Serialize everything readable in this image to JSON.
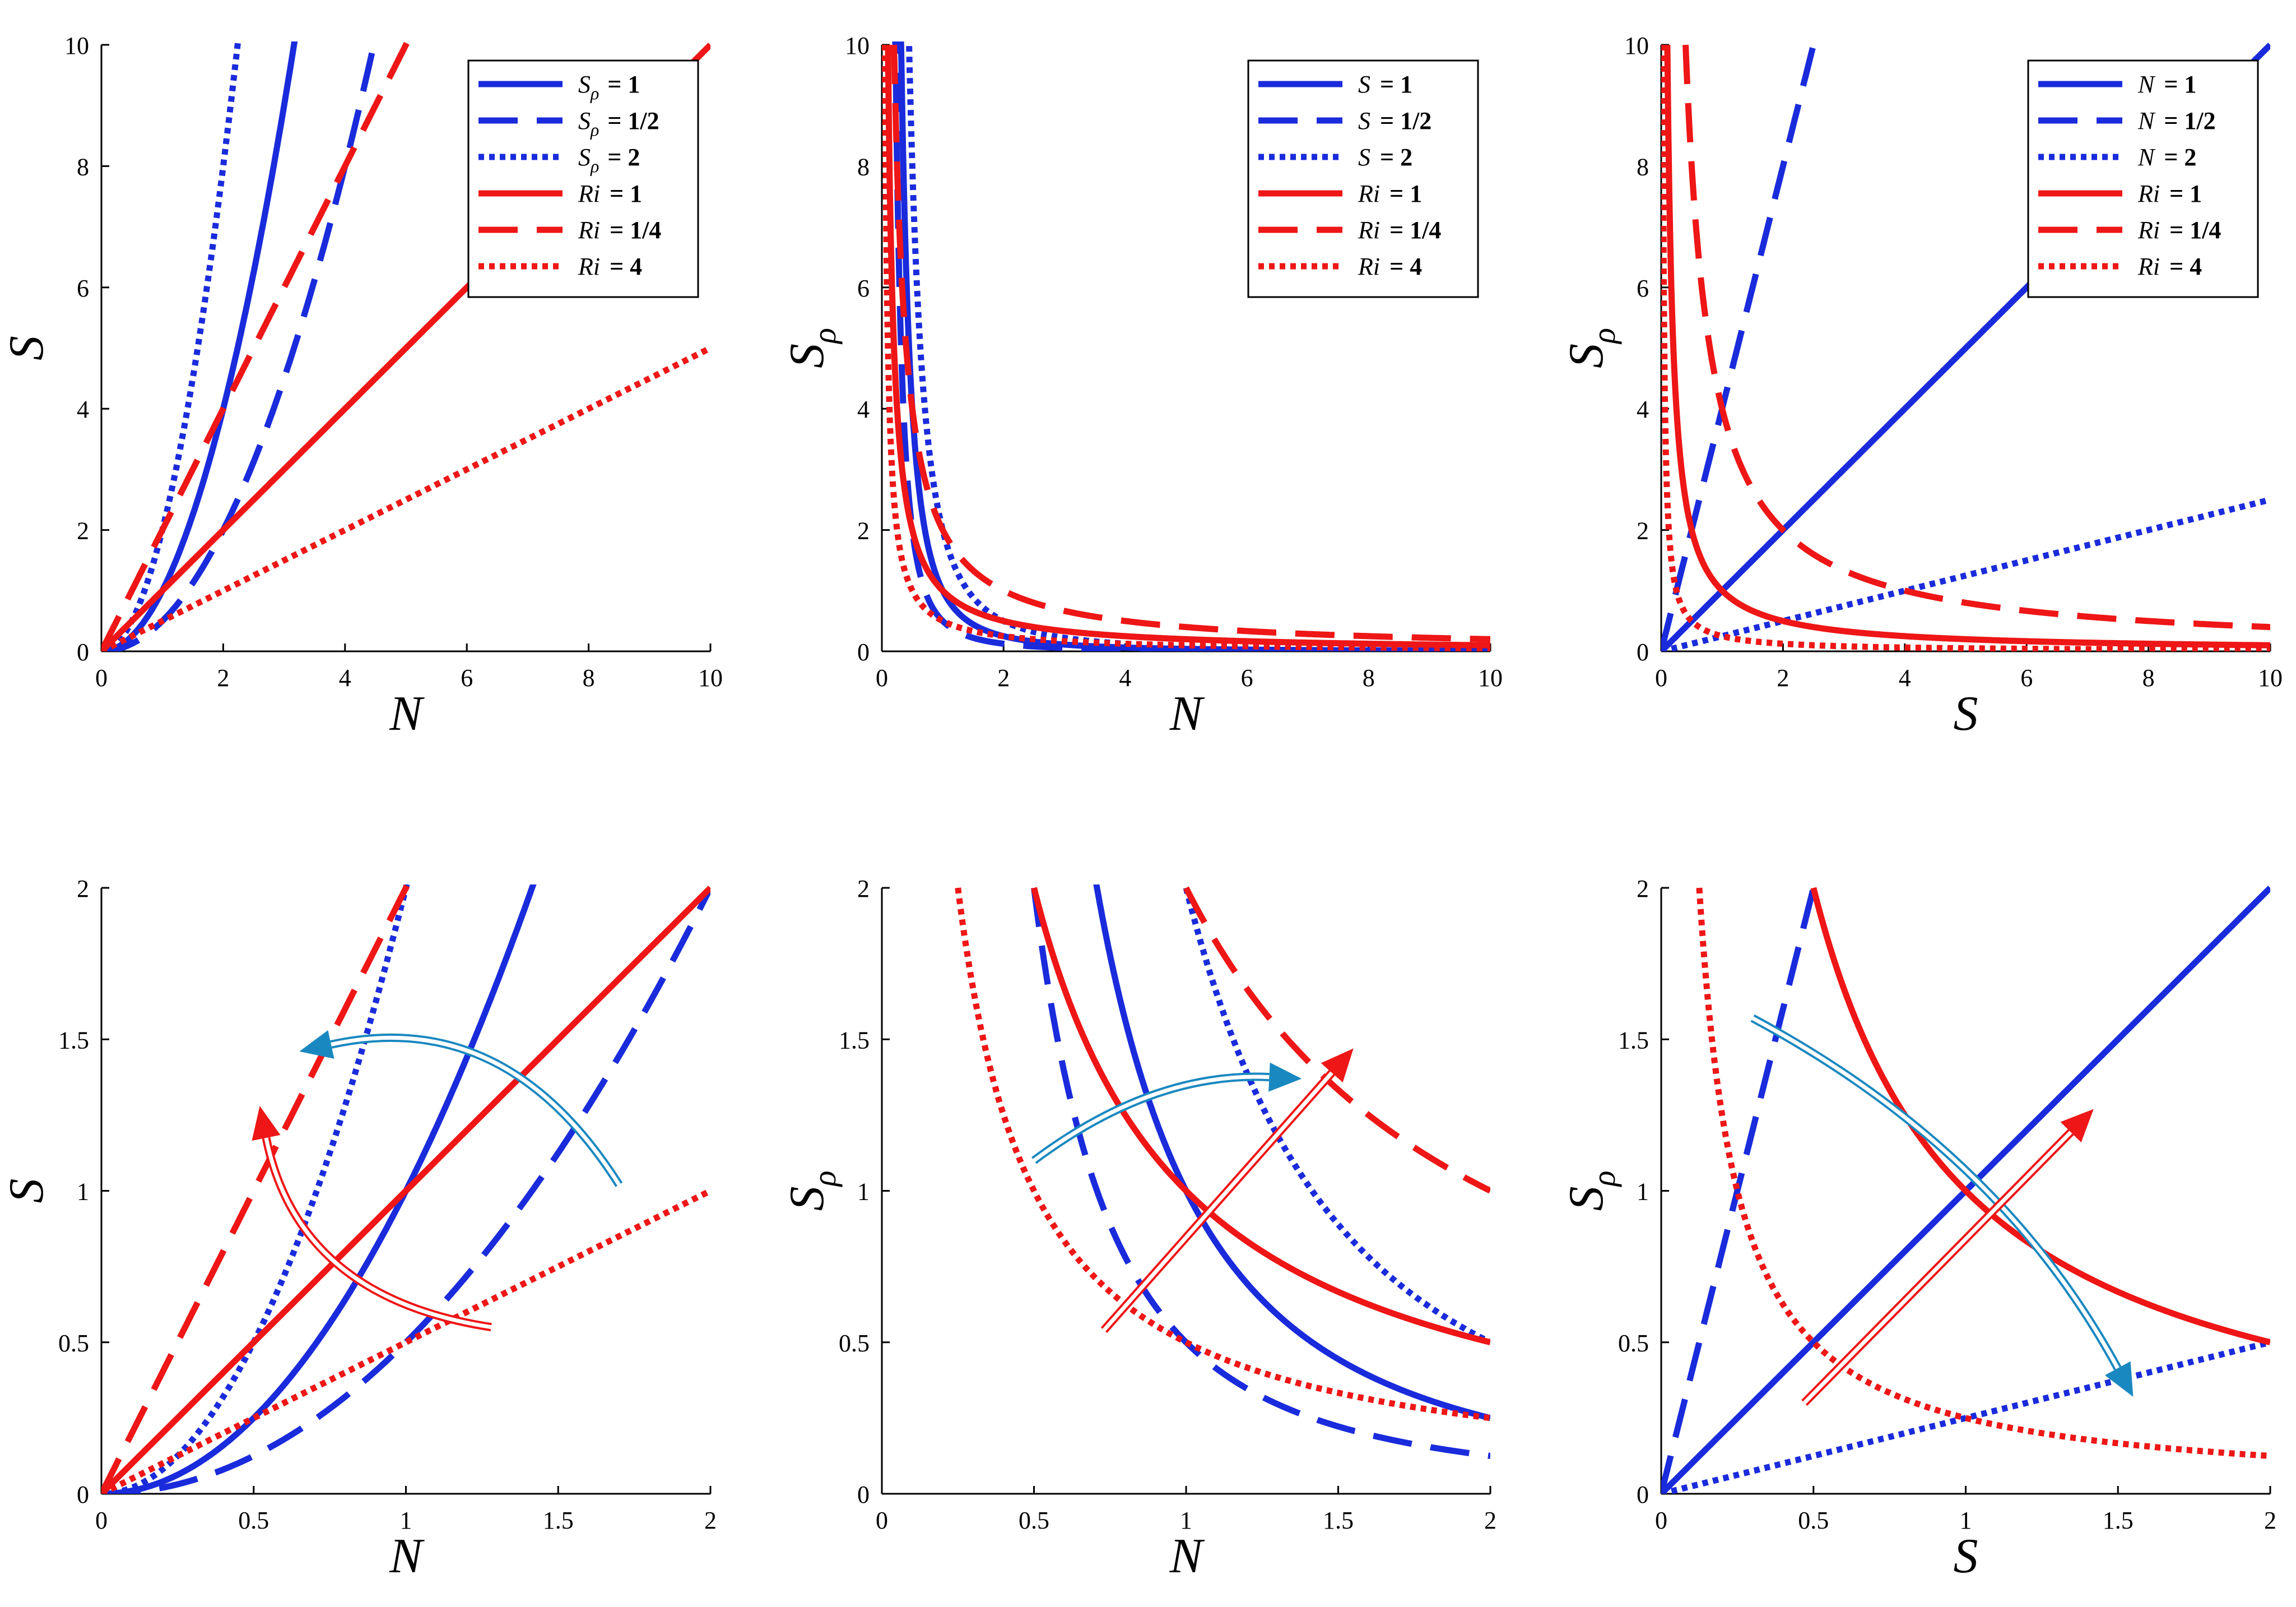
{
  "figure": {
    "colors": {
      "blue": "#1a2bdc",
      "red": "#ee1616",
      "teal": "#1a88c0"
    },
    "description_panels": 6
  },
  "chart_data": [
    {
      "id": "p1",
      "type": "line",
      "xlabel": "N",
      "ylabel": "S",
      "ylabel_sub": "",
      "xlim": [
        0,
        10
      ],
      "ylim": [
        0,
        10
      ],
      "xticks": [
        "0",
        "2",
        "4",
        "6",
        "8",
        "10"
      ],
      "yticks": [
        "0",
        "2",
        "4",
        "6",
        "8",
        "10"
      ],
      "legend": {
        "position": "top-right",
        "entries": [
          {
            "var": "S",
            "sub": "ρ",
            "eq": "= 1",
            "color": "blue",
            "dash": "solid"
          },
          {
            "var": "S",
            "sub": "ρ",
            "eq": "= 1/2",
            "color": "blue",
            "dash": "dashed"
          },
          {
            "var": "S",
            "sub": "ρ",
            "eq": "= 2",
            "color": "blue",
            "dash": "dotted"
          },
          {
            "var": "Ri",
            "sub": "",
            "eq": "= 1",
            "color": "red",
            "dash": "solid"
          },
          {
            "var": "Ri",
            "sub": "",
            "eq": "= 1/4",
            "color": "red",
            "dash": "dashed"
          },
          {
            "var": "Ri",
            "sub": "",
            "eq": "= 4",
            "color": "red",
            "dash": "dotted"
          }
        ]
      },
      "series": [
        {
          "name": "Sρ = 1",
          "color": "blue",
          "dash": "solid",
          "formula": "x^2",
          "domain": [
            0,
            10
          ]
        },
        {
          "name": "Sρ = 1/2",
          "color": "blue",
          "dash": "dashed",
          "formula": "x^2/2",
          "domain": [
            0,
            10
          ]
        },
        {
          "name": "Sρ = 2",
          "color": "blue",
          "dash": "dotted",
          "formula": "2*x^2",
          "domain": [
            0,
            10
          ]
        },
        {
          "name": "Ri = 1",
          "color": "red",
          "dash": "solid",
          "formula": "x",
          "domain": [
            0,
            10
          ]
        },
        {
          "name": "Ri = 1/4",
          "color": "red",
          "dash": "dashed",
          "formula": "2*x",
          "domain": [
            0,
            10
          ]
        },
        {
          "name": "Ri = 4",
          "color": "red",
          "dash": "dotted",
          "formula": "x/2",
          "domain": [
            0,
            10
          ]
        }
      ],
      "arrows": []
    },
    {
      "id": "p2",
      "type": "line",
      "xlabel": "N",
      "ylabel": "S",
      "ylabel_sub": "ρ",
      "xlim": [
        0,
        10
      ],
      "ylim": [
        0,
        10
      ],
      "xticks": [
        "0",
        "2",
        "4",
        "6",
        "8",
        "10"
      ],
      "yticks": [
        "0",
        "2",
        "4",
        "6",
        "8",
        "10"
      ],
      "legend": {
        "position": "top-right",
        "entries": [
          {
            "var": "S",
            "sub": "",
            "eq": " = 1",
            "color": "blue",
            "dash": "solid"
          },
          {
            "var": "S",
            "sub": "",
            "eq": " = 1/2",
            "color": "blue",
            "dash": "dashed"
          },
          {
            "var": "S",
            "sub": "",
            "eq": " = 2",
            "color": "blue",
            "dash": "dotted"
          },
          {
            "var": "Ri",
            "sub": "",
            "eq": "= 1",
            "color": "red",
            "dash": "solid"
          },
          {
            "var": "Ri",
            "sub": "",
            "eq": "= 1/4",
            "color": "red",
            "dash": "dashed"
          },
          {
            "var": "Ri",
            "sub": "",
            "eq": "= 4",
            "color": "red",
            "dash": "dotted"
          }
        ]
      },
      "series": [
        {
          "name": "S = 1",
          "color": "blue",
          "dash": "solid",
          "formula": "1/x^2",
          "domain": [
            0.3,
            10
          ]
        },
        {
          "name": "S = 1/2",
          "color": "blue",
          "dash": "dashed",
          "formula": "0.5/x^2",
          "domain": [
            0.21,
            10
          ]
        },
        {
          "name": "S = 2",
          "color": "blue",
          "dash": "dotted",
          "formula": "2/x^2",
          "domain": [
            0.44,
            10
          ]
        },
        {
          "name": "Ri = 1",
          "color": "red",
          "dash": "solid",
          "formula": "1/x",
          "domain": [
            0.1,
            10
          ]
        },
        {
          "name": "Ri = 1/4",
          "color": "red",
          "dash": "dashed",
          "formula": "2/x",
          "domain": [
            0.2,
            10
          ]
        },
        {
          "name": "Ri = 4",
          "color": "red",
          "dash": "dotted",
          "formula": "0.5/x",
          "domain": [
            0.05,
            10
          ]
        }
      ],
      "arrows": []
    },
    {
      "id": "p3",
      "type": "line",
      "xlabel": "S",
      "ylabel": "S",
      "ylabel_sub": "ρ",
      "xlim": [
        0,
        10
      ],
      "ylim": [
        0,
        10
      ],
      "xticks": [
        "0",
        "2",
        "4",
        "6",
        "8",
        "10"
      ],
      "yticks": [
        "0",
        "2",
        "4",
        "6",
        "8",
        "10"
      ],
      "legend": {
        "position": "top-right",
        "entries": [
          {
            "var": "N",
            "sub": "",
            "eq": "= 1",
            "color": "blue",
            "dash": "solid"
          },
          {
            "var": "N",
            "sub": "",
            "eq": "= 1/2",
            "color": "blue",
            "dash": "dashed"
          },
          {
            "var": "N",
            "sub": "",
            "eq": "= 2",
            "color": "blue",
            "dash": "dotted"
          },
          {
            "var": "Ri",
            "sub": "",
            "eq": "= 1",
            "color": "red",
            "dash": "solid"
          },
          {
            "var": "Ri",
            "sub": "",
            "eq": "= 1/4",
            "color": "red",
            "dash": "dashed"
          },
          {
            "var": "Ri",
            "sub": "",
            "eq": "= 4",
            "color": "red",
            "dash": "dotted"
          }
        ]
      },
      "series": [
        {
          "name": "N = 1",
          "color": "blue",
          "dash": "solid",
          "formula": "x",
          "domain": [
            0,
            10
          ]
        },
        {
          "name": "N = 1/2",
          "color": "blue",
          "dash": "dashed",
          "formula": "4*x",
          "domain": [
            0,
            10
          ]
        },
        {
          "name": "N = 2",
          "color": "blue",
          "dash": "dotted",
          "formula": "x/4",
          "domain": [
            0,
            10
          ]
        },
        {
          "name": "Ri = 1",
          "color": "red",
          "dash": "solid",
          "formula": "1/x",
          "domain": [
            0.1,
            10
          ]
        },
        {
          "name": "Ri = 1/4",
          "color": "red",
          "dash": "dashed",
          "formula": "4/x",
          "domain": [
            0.4,
            10
          ]
        },
        {
          "name": "Ri = 4",
          "color": "red",
          "dash": "dotted",
          "formula": "0.25/x",
          "domain": [
            0.025,
            10
          ]
        }
      ],
      "arrows": []
    },
    {
      "id": "p4",
      "type": "line",
      "xlabel": "N",
      "ylabel": "S",
      "ylabel_sub": "",
      "xlim": [
        0,
        2
      ],
      "ylim": [
        0,
        2
      ],
      "xticks": [
        "0",
        "0.5",
        "1",
        "1.5",
        "2"
      ],
      "yticks": [
        "0",
        "0.5",
        "1",
        "1.5",
        "2"
      ],
      "legend": null,
      "series": [
        {
          "name": "Sρ = 1",
          "color": "blue",
          "dash": "solid",
          "formula": "x^2",
          "domain": [
            0,
            2
          ]
        },
        {
          "name": "Sρ = 1/2",
          "color": "blue",
          "dash": "dashed",
          "formula": "x^2/2",
          "domain": [
            0,
            2
          ]
        },
        {
          "name": "Sρ = 2",
          "color": "blue",
          "dash": "dotted",
          "formula": "2*x^2",
          "domain": [
            0,
            2
          ]
        },
        {
          "name": "Ri = 1",
          "color": "red",
          "dash": "solid",
          "formula": "x",
          "domain": [
            0,
            2
          ]
        },
        {
          "name": "Ri = 1/4",
          "color": "red",
          "dash": "dashed",
          "formula": "2*x",
          "domain": [
            0,
            2
          ]
        },
        {
          "name": "Ri = 4",
          "color": "red",
          "dash": "dotted",
          "formula": "x/2",
          "domain": [
            0,
            2
          ]
        }
      ],
      "arrows": [
        {
          "color": "teal",
          "from": [
            1.7,
            1.02
          ],
          "to": [
            0.65,
            1.46
          ],
          "bend": 0.35
        },
        {
          "color": "red",
          "from": [
            1.28,
            0.55
          ],
          "to": [
            0.52,
            1.28
          ],
          "bend": -0.35
        }
      ]
    },
    {
      "id": "p5",
      "type": "line",
      "xlabel": "N",
      "ylabel": "S",
      "ylabel_sub": "ρ",
      "xlim": [
        0,
        2
      ],
      "ylim": [
        0,
        2
      ],
      "xticks": [
        "0",
        "0.5",
        "1",
        "1.5",
        "2"
      ],
      "yticks": [
        "0",
        "0.5",
        "1",
        "1.5",
        "2"
      ],
      "legend": null,
      "series": [
        {
          "name": "S = 1",
          "color": "blue",
          "dash": "solid",
          "formula": "1/x^2",
          "domain": [
            0.7,
            2
          ]
        },
        {
          "name": "S = 1/2",
          "color": "blue",
          "dash": "dashed",
          "formula": "0.5/x^2",
          "domain": [
            0.5,
            2
          ]
        },
        {
          "name": "S = 2",
          "color": "blue",
          "dash": "dotted",
          "formula": "2/x^2",
          "domain": [
            1.0,
            2
          ]
        },
        {
          "name": "Ri = 1",
          "color": "red",
          "dash": "solid",
          "formula": "1/x",
          "domain": [
            0.5,
            2
          ]
        },
        {
          "name": "Ri = 1/4",
          "color": "red",
          "dash": "dashed",
          "formula": "2/x",
          "domain": [
            1.0,
            2
          ]
        },
        {
          "name": "Ri = 4",
          "color": "red",
          "dash": "dotted",
          "formula": "0.5/x",
          "domain": [
            0.25,
            2
          ]
        }
      ],
      "arrows": [
        {
          "color": "teal",
          "from": [
            0.5,
            1.1
          ],
          "to": [
            1.38,
            1.37
          ],
          "bend": -0.18
        },
        {
          "color": "red",
          "from": [
            0.73,
            0.54
          ],
          "to": [
            1.55,
            1.47
          ],
          "bend": 0
        }
      ]
    },
    {
      "id": "p6",
      "type": "line",
      "xlabel": "S",
      "ylabel": "S",
      "ylabel_sub": "ρ",
      "xlim": [
        0,
        2
      ],
      "ylim": [
        0,
        2
      ],
      "xticks": [
        "0",
        "0.5",
        "1",
        "1.5",
        "2"
      ],
      "yticks": [
        "0",
        "0.5",
        "1",
        "1.5",
        "2"
      ],
      "legend": null,
      "series": [
        {
          "name": "N = 1",
          "color": "blue",
          "dash": "solid",
          "formula": "x",
          "domain": [
            0,
            2
          ]
        },
        {
          "name": "N = 1/2",
          "color": "blue",
          "dash": "dashed",
          "formula": "4*x",
          "domain": [
            0,
            0.5
          ]
        },
        {
          "name": "N = 2",
          "color": "blue",
          "dash": "dotted",
          "formula": "x/4",
          "domain": [
            0,
            2
          ]
        },
        {
          "name": "Ri = 1",
          "color": "red",
          "dash": "solid",
          "formula": "1/x",
          "domain": [
            0.5,
            2
          ]
        },
        {
          "name": "Ri = 1/4",
          "color": "red",
          "dash": "dashed",
          "formula": "4/x",
          "domain": [
            2,
            2
          ]
        },
        {
          "name": "Ri = 4",
          "color": "red",
          "dash": "dotted",
          "formula": "0.25/x",
          "domain": [
            0.125,
            2
          ]
        }
      ],
      "arrows": [
        {
          "color": "teal",
          "from": [
            0.3,
            1.57
          ],
          "to": [
            1.55,
            0.32
          ],
          "bend": -0.15
        },
        {
          "color": "red",
          "from": [
            0.47,
            0.3
          ],
          "to": [
            1.42,
            1.27
          ],
          "bend": 0
        }
      ]
    }
  ]
}
